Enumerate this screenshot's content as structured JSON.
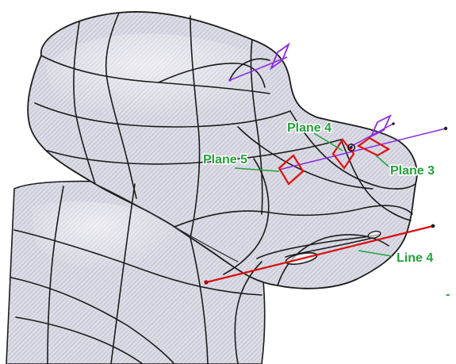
{
  "viewport": {
    "background": "#ffffff",
    "surface_color": "#dcdce6",
    "hatch_color": "#b8b8c6",
    "edge_color": "#1b1b1b"
  },
  "labels": {
    "plane3": "Plane 3",
    "plane4": "Plane 4",
    "plane5": "Plane 5",
    "line4": "Line 4",
    "dash": "-"
  },
  "colors": {
    "label_green": "#22a33a",
    "plane_red": "#e01010",
    "axis_purple": "#8a2be2",
    "line_red": "#d81010"
  }
}
